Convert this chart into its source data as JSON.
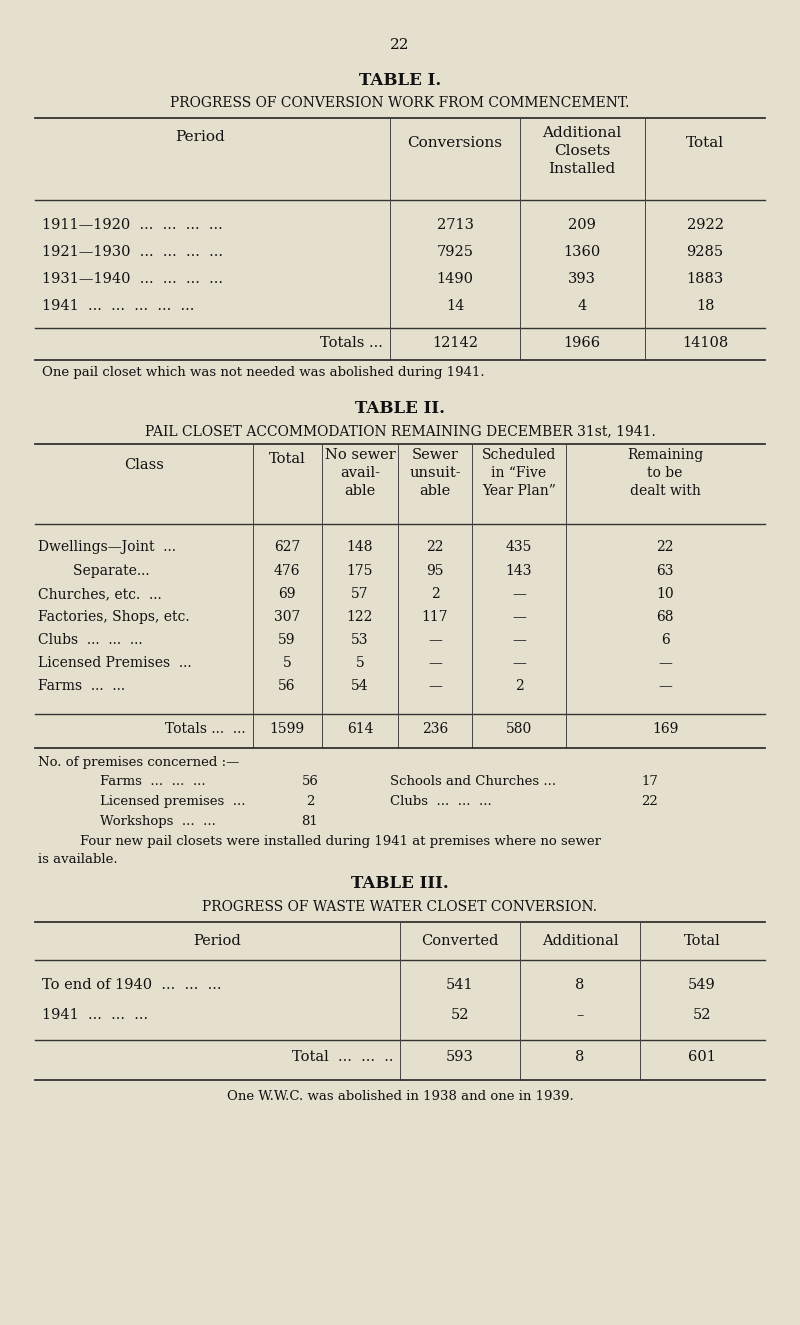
{
  "bg_color": "#e5e0ce",
  "text_color": "#111111",
  "page_number": "22",
  "t1_title": "TABLE I.",
  "t1_subtitle": "PROGRESS OF CONVERSION WORK FROM COMMENCEMENT.",
  "t1_headers": [
    "Period",
    "Conversions",
    "Additional\nClosets\nInstalled",
    "Total"
  ],
  "t1_rows": [
    [
      "1911—1920  ...  ...  ...  ...",
      "2713",
      "209",
      "2922"
    ],
    [
      "1921—1930  ...  ...  ...  ...",
      "7925",
      "1360",
      "9285"
    ],
    [
      "1931—1940  ...  ...  ...  ...",
      "1490",
      "393",
      "1883"
    ],
    [
      "1941  ...  ...  ...  ...  ...",
      "14",
      "4",
      "18"
    ]
  ],
  "t1_totals": [
    "Totals ...",
    "12142",
    "1966",
    "14108"
  ],
  "t1_footnote": "One pail closet which was not needed was abolished during 1941.",
  "t2_title": "TABLE II.",
  "t2_subtitle": "PAIL CLOSET ACCOMMODATION REMAINING DECEMBER 31st, 1941.",
  "t2_headers": [
    "Class",
    "Total",
    "No sewer\navail-\nable",
    "Sewer\nunsuit-\nable",
    "Scheduled\nin “Five\nYear Plan”",
    "Remaining\nto be\ndealt with"
  ],
  "t2_rows": [
    [
      "Dwellings—Joint  ...",
      "627",
      "148",
      "22",
      "435",
      "22"
    ],
    [
      "        Separate...",
      "476",
      "175",
      "95",
      "143",
      "63"
    ],
    [
      "Churches, etc.  ...",
      "69",
      "57",
      "2",
      "—",
      "10"
    ],
    [
      "Factories, Shops, etc.",
      "307",
      "122",
      "117",
      "—",
      "68"
    ],
    [
      "Clubs  ...  ...  ...",
      "59",
      "53",
      "—",
      "—",
      "6"
    ],
    [
      "Licensed Premises  ...",
      "5",
      "5",
      "—",
      "—",
      "—"
    ],
    [
      "Farms  ...  ...",
      "56",
      "54",
      "—",
      "2",
      "—"
    ]
  ],
  "t2_totals": [
    "Totals ...  ...",
    "1599",
    "614",
    "236",
    "580",
    "169"
  ],
  "t2_premises_note": "No. of premises concerned :—",
  "t2_premises": [
    [
      "Farms  ...  ...  ...",
      "56",
      "Schools and Churches ...",
      "17"
    ],
    [
      "Licensed premises  ...",
      "2",
      "Clubs  ...  ...  ...",
      "22"
    ],
    [
      "Workshops  ...  ...",
      "81",
      "",
      ""
    ]
  ],
  "t2_footnote1": "Four new pail closets were installed during 1941 at premises where no sewer",
  "t2_footnote2": "is available.",
  "t3_title": "TABLE III.",
  "t3_subtitle": "PROGRESS OF WASTE WATER CLOSET CONVERSION.",
  "t3_headers": [
    "Period",
    "Converted",
    "Additional",
    "Total"
  ],
  "t3_rows": [
    [
      "To end of 1940  ...  ...  ...",
      "541",
      "8",
      "549"
    ],
    [
      "1941  ...  ...  ...",
      "52",
      "–",
      "52"
    ]
  ],
  "t3_totals": [
    "Total  ...  ...  ..",
    "593",
    "8",
    "601"
  ],
  "t3_footnote": "One W.W.C. was abolished in 1938 and one in 1939."
}
